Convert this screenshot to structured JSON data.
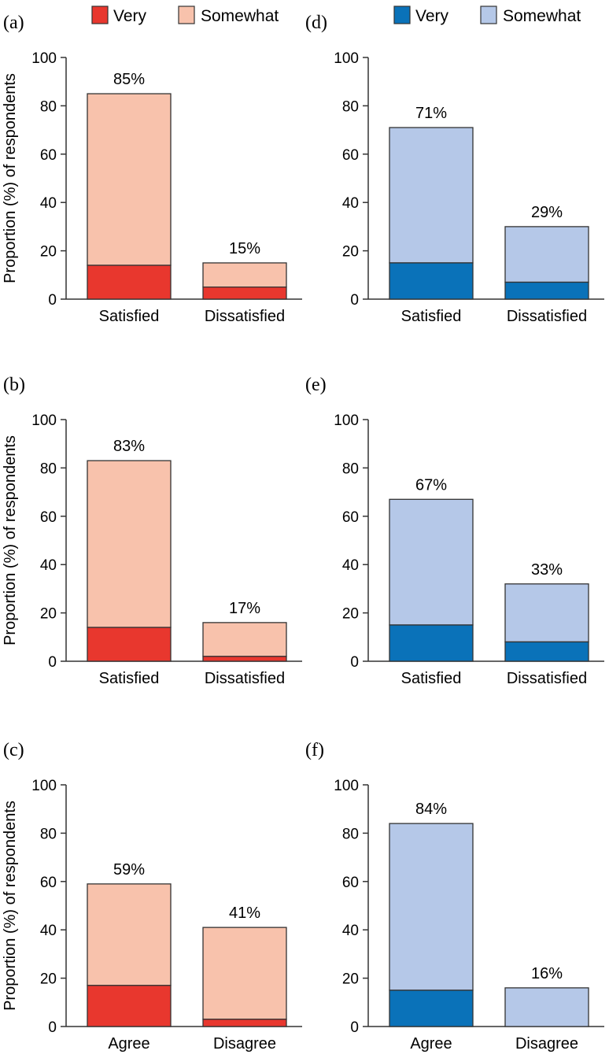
{
  "colors": {
    "red_very": "#e8372e",
    "red_somewhat": "#f8c2ac",
    "blue_very": "#0a72b9",
    "blue_somewhat": "#b5c8e8",
    "outline": "#333333"
  },
  "chart_data": [
    {
      "panel": "(a)",
      "type": "bar",
      "stacked": true,
      "palette": "red",
      "ylabel": "Proportion (%) of respondents",
      "ylim": [
        0,
        100
      ],
      "yticks": [
        0,
        20,
        40,
        60,
        80,
        100
      ],
      "legend": [
        "Very",
        "Somewhat"
      ],
      "categories": [
        "Satisfied",
        "Dissatisfied"
      ],
      "series": [
        {
          "name": "Very",
          "values": [
            14,
            5
          ]
        },
        {
          "name": "Somewhat",
          "values": [
            71,
            10
          ]
        }
      ],
      "labels": [
        "85%",
        "15%"
      ]
    },
    {
      "panel": "(b)",
      "type": "bar",
      "stacked": true,
      "palette": "red",
      "ylabel": "Proportion (%) of respondents",
      "ylim": [
        0,
        100
      ],
      "yticks": [
        0,
        20,
        40,
        60,
        80,
        100
      ],
      "categories": [
        "Satisfied",
        "Dissatisfied"
      ],
      "series": [
        {
          "name": "Very",
          "values": [
            14,
            2
          ]
        },
        {
          "name": "Somewhat",
          "values": [
            69,
            14
          ]
        }
      ],
      "labels": [
        "83%",
        "17%"
      ]
    },
    {
      "panel": "(c)",
      "type": "bar",
      "stacked": true,
      "palette": "red",
      "ylabel": "Proportion (%) of respondents",
      "ylim": [
        0,
        100
      ],
      "yticks": [
        0,
        20,
        40,
        60,
        80,
        100
      ],
      "categories": [
        "Agree",
        "Disagree"
      ],
      "series": [
        {
          "name": "Very",
          "values": [
            17,
            3
          ]
        },
        {
          "name": "Somewhat",
          "values": [
            42,
            38
          ]
        }
      ],
      "labels": [
        "59%",
        "41%"
      ]
    },
    {
      "panel": "(d)",
      "type": "bar",
      "stacked": true,
      "palette": "blue",
      "ylabel": "",
      "ylim": [
        0,
        100
      ],
      "yticks": [
        0,
        20,
        40,
        60,
        80,
        100
      ],
      "legend": [
        "Very",
        "Somewhat"
      ],
      "categories": [
        "Satisfied",
        "Dissatisfied"
      ],
      "series": [
        {
          "name": "Very",
          "values": [
            15,
            7
          ]
        },
        {
          "name": "Somewhat",
          "values": [
            56,
            23
          ]
        }
      ],
      "labels": [
        "71%",
        "29%"
      ]
    },
    {
      "panel": "(e)",
      "type": "bar",
      "stacked": true,
      "palette": "blue",
      "ylabel": "",
      "ylim": [
        0,
        100
      ],
      "yticks": [
        0,
        20,
        40,
        60,
        80,
        100
      ],
      "categories": [
        "Satisfied",
        "Dissatisfied"
      ],
      "series": [
        {
          "name": "Very",
          "values": [
            15,
            8
          ]
        },
        {
          "name": "Somewhat",
          "values": [
            52,
            24
          ]
        }
      ],
      "labels": [
        "67%",
        "33%"
      ]
    },
    {
      "panel": "(f)",
      "type": "bar",
      "stacked": true,
      "palette": "blue",
      "ylabel": "",
      "ylim": [
        0,
        100
      ],
      "yticks": [
        0,
        20,
        40,
        60,
        80,
        100
      ],
      "categories": [
        "Agree",
        "Disagree"
      ],
      "series": [
        {
          "name": "Very",
          "values": [
            15,
            0
          ]
        },
        {
          "name": "Somewhat",
          "values": [
            69,
            16
          ]
        }
      ],
      "labels": [
        "84%",
        "16%"
      ]
    }
  ]
}
